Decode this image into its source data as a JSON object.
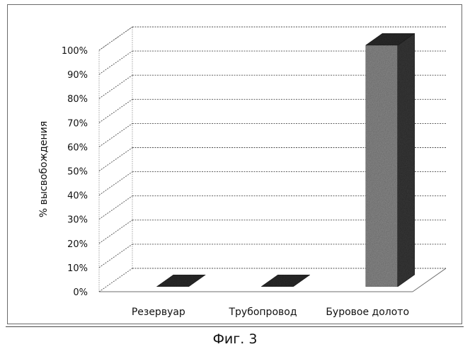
{
  "figure": {
    "caption": "Фиг. 3"
  },
  "chart_data": {
    "type": "bar",
    "three_d": true,
    "categories": [
      "Резервуар",
      "Трубопровод",
      "Буровое долото"
    ],
    "values": [
      0,
      0,
      100
    ],
    "ylabel": "% высвобождения",
    "xlabel": "",
    "ylim": [
      0,
      100
    ],
    "yticks": [
      "0%",
      "10%",
      "20%",
      "30%",
      "40%",
      "50%",
      "60%",
      "70%",
      "80%",
      "90%",
      "100%"
    ],
    "grid": true,
    "legend": "none",
    "colors": {
      "bar_front": "#8c8c8c",
      "bar_side": "#3a3a3a",
      "bar_top": "#2e2e2e",
      "grid": "#4d4d4d"
    }
  }
}
